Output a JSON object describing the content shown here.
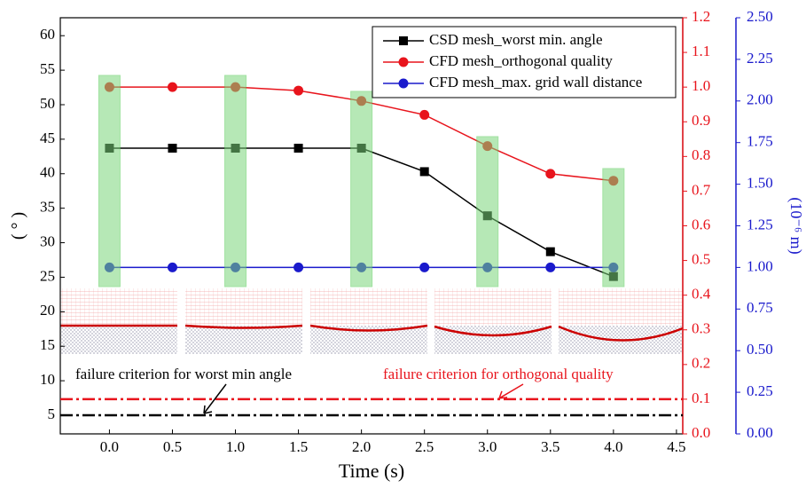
{
  "chart_data": {
    "type": "line",
    "xlabel": "Time (s)",
    "ylabel": "( ° )",
    "y3label": "(10⁻⁶ m)",
    "x": [
      0,
      0.5,
      1,
      1.5,
      2,
      2.5,
      3,
      3.5,
      4
    ],
    "xlim": [
      -0.39,
      4.55
    ],
    "xticks": [
      {
        "value": 0,
        "label": "0.0"
      },
      0.5,
      {
        "value": 1,
        "label": "1.0"
      },
      1.5,
      {
        "value": 2,
        "label": "2.0"
      },
      2.5,
      {
        "value": 3,
        "label": "3.0"
      },
      3.5,
      {
        "value": 4,
        "label": "4.0"
      },
      4.5
    ],
    "ylim": [
      2.3,
      62.6
    ],
    "yticks": [
      5,
      10,
      15,
      20,
      25,
      30,
      35,
      40,
      45,
      50,
      55,
      60
    ],
    "y2lim": [
      0,
      1.2
    ],
    "y2ticks": [
      {
        "value": 0,
        "label": "0.0"
      },
      0.1,
      0.2,
      0.3,
      0.4,
      0.5,
      0.6,
      0.7,
      0.8,
      0.9,
      {
        "value": 1,
        "label": "1.0"
      },
      1.1,
      1.2
    ],
    "y3lim": [
      0,
      2.5
    ],
    "y3ticks": [
      {
        "value": 0,
        "label": "0.00"
      },
      {
        "value": 0.25,
        "label": "0.25"
      },
      {
        "value": 0.5,
        "label": "0.50"
      },
      {
        "value": 0.75,
        "label": "0.75"
      },
      {
        "value": 1,
        "label": "1.00"
      },
      {
        "value": 1.25,
        "label": "1.25"
      },
      {
        "value": 1.5,
        "label": "1.50"
      },
      {
        "value": 1.75,
        "label": "1.75"
      },
      {
        "value": 2,
        "label": "2.00"
      },
      {
        "value": 2.25,
        "label": "2.25"
      },
      {
        "value": 2.5,
        "label": "2.50"
      }
    ],
    "series": [
      {
        "name": "CSD mesh_worst min. angle",
        "color": "#000000",
        "marker": "square",
        "axis": "y",
        "values": [
          43.7,
          43.7,
          43.7,
          43.7,
          43.7,
          40.3,
          33.9,
          28.7,
          25.1
        ]
      },
      {
        "name": "CFD mesh_orthogonal quality",
        "color": "#e8141c",
        "marker": "circle",
        "axis": "y2",
        "values": [
          1.0,
          1.0,
          1.0,
          0.99,
          0.96,
          0.92,
          0.83,
          0.75,
          0.73
        ]
      },
      {
        "name": "CFD mesh_max. grid wall distance",
        "color": "#1a1acc",
        "marker": "circle",
        "axis": "y3",
        "values": [
          1.0,
          1.0,
          1.0,
          1.0,
          1.0,
          1.0,
          1.0,
          1.0,
          1.0
        ]
      }
    ],
    "hlines": [
      {
        "value": 5,
        "axis": "y",
        "color": "#000000",
        "label": "failure criterion for worst min angle"
      },
      {
        "value": 0.1,
        "axis": "y2",
        "color": "#e8141c",
        "label": "failure criterion for orthogonal quality"
      }
    ]
  }
}
